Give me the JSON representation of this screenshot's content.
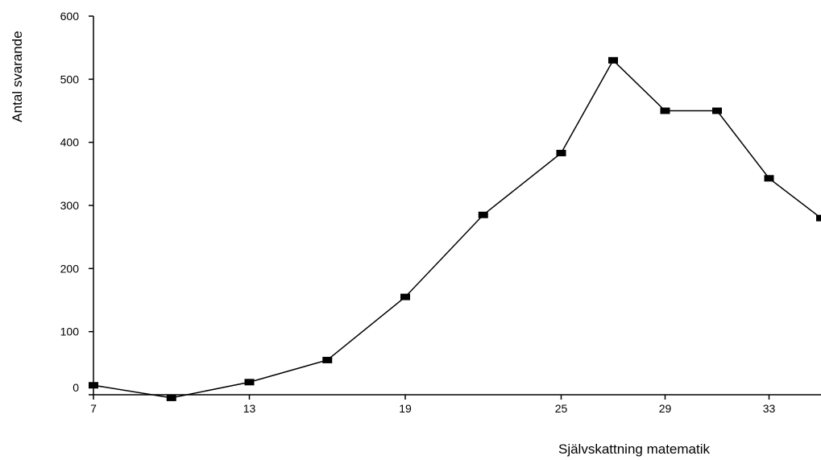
{
  "chart_data": {
    "type": "line",
    "title": "",
    "xlabel": "Självskattning matematik",
    "ylabel": "Antal svarande",
    "ylim": [
      0,
      600
    ],
    "xlim": [
      7,
      35
    ],
    "yticks": [
      "0",
      "100",
      "200",
      "300",
      "400",
      "500",
      "600"
    ],
    "xticks": [
      "7",
      "13",
      "19",
      "25",
      "29",
      "33"
    ],
    "grid": false,
    "legend": "none",
    "marker": "square",
    "line_color": "#000000",
    "series": [
      {
        "x": [
          7,
          10,
          13,
          16,
          19,
          22,
          25,
          27,
          29,
          31,
          33,
          35
        ],
        "y": [
          15,
          -5,
          20,
          55,
          155,
          285,
          383,
          530,
          450,
          450,
          343,
          280
        ]
      }
    ]
  }
}
